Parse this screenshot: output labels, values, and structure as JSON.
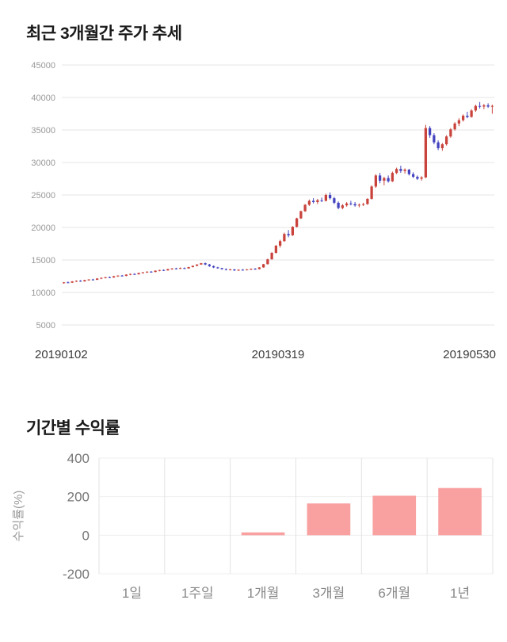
{
  "page": {
    "background": "#ffffff"
  },
  "sections": {
    "price_trend": {
      "title": "최근 3개월간 주가 추세"
    },
    "returns": {
      "title": "기간별 수익률"
    }
  },
  "chart_data": [
    {
      "type": "candlestick",
      "title": "최근 3개월간 주가 추세",
      "ylim": [
        5000,
        45000
      ],
      "y_ticks": [
        45000,
        40000,
        35000,
        30000,
        25000,
        20000,
        15000,
        10000,
        5000
      ],
      "x_tick_labels": [
        "20190102",
        "20190319",
        "20190530"
      ],
      "grid": "horizontal",
      "up_color": "#c9433c",
      "down_color": "#4343c0",
      "grid_color": "#e6e6e6",
      "axis_text_color": "#999999",
      "x_text_color": "#3c3c3c",
      "candles": [
        [
          11450,
          11600,
          11350,
          11550
        ],
        [
          11550,
          11700,
          11450,
          11500
        ],
        [
          11500,
          11750,
          11480,
          11700
        ],
        [
          11700,
          11850,
          11600,
          11800
        ],
        [
          11800,
          11900,
          11650,
          11700
        ],
        [
          11700,
          11950,
          11680,
          11900
        ],
        [
          11900,
          12050,
          11800,
          12000
        ],
        [
          12000,
          12100,
          11850,
          11950
        ],
        [
          11950,
          12200,
          11900,
          12150
        ],
        [
          12150,
          12300,
          12050,
          12250
        ],
        [
          12250,
          12400,
          12150,
          12350
        ],
        [
          12350,
          12450,
          12200,
          12300
        ],
        [
          12300,
          12550,
          12250,
          12500
        ],
        [
          12500,
          12650,
          12400,
          12600
        ],
        [
          12600,
          12700,
          12450,
          12550
        ],
        [
          12550,
          12800,
          12500,
          12750
        ],
        [
          12750,
          12900,
          12650,
          12850
        ],
        [
          12850,
          12950,
          12700,
          12800
        ],
        [
          12800,
          13050,
          12750,
          13000
        ],
        [
          13000,
          13150,
          12900,
          13100
        ],
        [
          13100,
          13250,
          13000,
          13200
        ],
        [
          13200,
          13300,
          13050,
          13150
        ],
        [
          13150,
          13400,
          13100,
          13350
        ],
        [
          13350,
          13500,
          13250,
          13450
        ],
        [
          13450,
          13550,
          13300,
          13400
        ],
        [
          13400,
          13650,
          13350,
          13600
        ],
        [
          13600,
          13750,
          13500,
          13700
        ],
        [
          13700,
          13800,
          13550,
          13650
        ],
        [
          13650,
          13850,
          13600,
          13750
        ],
        [
          13750,
          13850,
          13600,
          13700
        ],
        [
          13700,
          13950,
          13650,
          13900
        ],
        [
          13900,
          14150,
          13850,
          14100
        ],
        [
          14100,
          14350,
          14050,
          14300
        ],
        [
          14300,
          14550,
          14250,
          14500
        ],
        [
          14500,
          14600,
          14200,
          14300
        ],
        [
          14300,
          14400,
          13950,
          14050
        ],
        [
          14050,
          14150,
          13750,
          13850
        ],
        [
          13850,
          13950,
          13650,
          13750
        ],
        [
          13750,
          13800,
          13500,
          13600
        ],
        [
          13600,
          13700,
          13400,
          13500
        ],
        [
          13500,
          13650,
          13400,
          13550
        ],
        [
          13550,
          13600,
          13300,
          13400
        ],
        [
          13400,
          13550,
          13300,
          13500
        ],
        [
          13500,
          13600,
          13350,
          13450
        ],
        [
          13450,
          13600,
          13400,
          13550
        ],
        [
          13550,
          13700,
          13450,
          13650
        ],
        [
          13650,
          13750,
          13500,
          13600
        ],
        [
          13600,
          13900,
          13550,
          13850
        ],
        [
          13850,
          14400,
          13800,
          14350
        ],
        [
          14350,
          15200,
          14300,
          15100
        ],
        [
          15100,
          16200,
          15050,
          16100
        ],
        [
          16100,
          17300,
          16000,
          17200
        ],
        [
          17200,
          18100,
          16900,
          17900
        ],
        [
          17900,
          19200,
          17800,
          19000
        ],
        [
          19000,
          19600,
          18500,
          18800
        ],
        [
          18800,
          20200,
          18700,
          20100
        ],
        [
          20100,
          21500,
          20000,
          21400
        ],
        [
          21400,
          22600,
          21300,
          22500
        ],
        [
          22500,
          23600,
          22400,
          23500
        ],
        [
          23500,
          24300,
          23300,
          24100
        ],
        [
          24100,
          24500,
          23700,
          23900
        ],
        [
          23900,
          24400,
          23600,
          24200
        ],
        [
          24200,
          24600,
          23900,
          24100
        ],
        [
          24100,
          25200,
          24000,
          25000
        ],
        [
          25000,
          25400,
          24300,
          24500
        ],
        [
          24500,
          24700,
          23600,
          23800
        ],
        [
          23800,
          24000,
          22800,
          23000
        ],
        [
          23000,
          23600,
          22800,
          23400
        ],
        [
          23400,
          23900,
          23200,
          23700
        ],
        [
          23700,
          24100,
          23400,
          23600
        ],
        [
          23600,
          23900,
          23200,
          23400
        ],
        [
          23400,
          23700,
          23100,
          23500
        ],
        [
          23500,
          23800,
          23300,
          23600
        ],
        [
          23600,
          24500,
          23500,
          24400
        ],
        [
          24400,
          26500,
          24300,
          26300
        ],
        [
          26300,
          28200,
          26100,
          28000
        ],
        [
          28000,
          28400,
          26800,
          27200
        ],
        [
          27200,
          27800,
          26500,
          27600
        ],
        [
          27600,
          28000,
          26900,
          27100
        ],
        [
          27100,
          28600,
          27000,
          28400
        ],
        [
          28400,
          29200,
          28200,
          29000
        ],
        [
          29000,
          29500,
          28400,
          28700
        ],
        [
          28700,
          29100,
          28300,
          28900
        ],
        [
          28900,
          29000,
          28000,
          28200
        ],
        [
          28200,
          28500,
          27600,
          27800
        ],
        [
          27800,
          28000,
          27300,
          27500
        ],
        [
          27500,
          27900,
          27200,
          27700
        ],
        [
          27700,
          35800,
          27600,
          35300
        ],
        [
          35300,
          35600,
          33800,
          34200
        ],
        [
          34200,
          34500,
          32800,
          33100
        ],
        [
          33100,
          33400,
          31900,
          32200
        ],
        [
          32200,
          33000,
          31800,
          32800
        ],
        [
          32800,
          34200,
          32600,
          34000
        ],
        [
          34000,
          35300,
          33800,
          35100
        ],
        [
          35100,
          36200,
          34900,
          36000
        ],
        [
          36000,
          36800,
          35600,
          36500
        ],
        [
          36500,
          37400,
          36300,
          37200
        ],
        [
          37200,
          37800,
          36800,
          37000
        ],
        [
          37000,
          38200,
          36900,
          38000
        ],
        [
          38000,
          38900,
          37800,
          38700
        ],
        [
          38700,
          39300,
          38300,
          38600
        ],
        [
          38600,
          39000,
          38200,
          38800
        ],
        [
          38800,
          39100,
          38400,
          38600
        ],
        [
          38600,
          38900,
          37500,
          38700
        ]
      ]
    },
    {
      "type": "bar",
      "title": "기간별 수익률",
      "ylabel": "수익률(%)",
      "categories": [
        "1일",
        "1주일",
        "1개월",
        "3개월",
        "6개월",
        "1년"
      ],
      "values": [
        0,
        0,
        15,
        165,
        205,
        245
      ],
      "ylim": [
        -200,
        400
      ],
      "y_ticks": [
        400,
        200,
        0,
        -200
      ],
      "bar_color": "#f9a1a1",
      "grid_color": "#e3e3e3",
      "axis_text_color": "#888888"
    }
  ]
}
